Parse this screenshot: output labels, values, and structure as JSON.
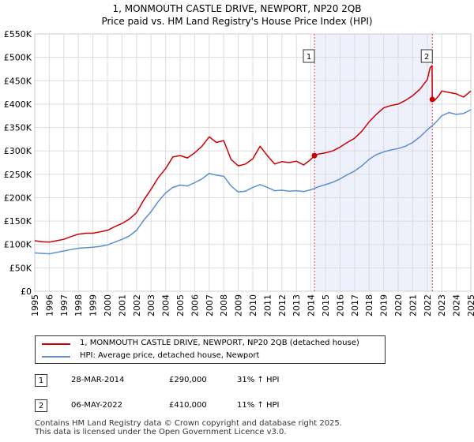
{
  "title_line1": "1, MONMOUTH CASTLE DRIVE, NEWPORT, NP20 2QB",
  "title_line2": "Price paid vs. HM Land Registry's House Price Index (HPI)",
  "colors": {
    "property": "#cc0000",
    "hpi": "#5b8fd1",
    "shade": "#eef1fb",
    "marker_line": "#dd4444"
  },
  "chart_data": {
    "type": "line",
    "xlim": [
      1995,
      2025
    ],
    "ylim": [
      0,
      550000
    ],
    "y_ticks": [
      0,
      50000,
      100000,
      150000,
      200000,
      250000,
      300000,
      350000,
      400000,
      450000,
      500000,
      550000
    ],
    "y_tick_labels": [
      "£0",
      "£50K",
      "£100K",
      "£150K",
      "£200K",
      "£250K",
      "£300K",
      "£350K",
      "£400K",
      "£450K",
      "£500K",
      "£550K"
    ],
    "x_tick_labels": [
      "1995",
      "1996",
      "1997",
      "1998",
      "1999",
      "2000",
      "2001",
      "2002",
      "2003",
      "2004",
      "2005",
      "2006",
      "2007",
      "2008",
      "2009",
      "2010",
      "2011",
      "2012",
      "2013",
      "2014",
      "2015",
      "2016",
      "2017",
      "2018",
      "2019",
      "2020",
      "2021",
      "2022",
      "2023",
      "2024",
      "2025"
    ],
    "shaded_region": [
      2014.24,
      2022.35
    ],
    "series": [
      {
        "name": "1, MONMOUTH CASTLE DRIVE, NEWPORT, NP20 2QB (detached house)",
        "points": [
          [
            1995,
            108000
          ],
          [
            1995.5,
            106000
          ],
          [
            1996,
            105000
          ],
          [
            1996.5,
            108000
          ],
          [
            1997,
            111000
          ],
          [
            1997.5,
            117000
          ],
          [
            1998,
            122000
          ],
          [
            1998.5,
            124000
          ],
          [
            1999,
            124000
          ],
          [
            1999.5,
            127000
          ],
          [
            2000,
            130000
          ],
          [
            2000.5,
            138000
          ],
          [
            2001,
            145000
          ],
          [
            2001.5,
            154000
          ],
          [
            2002,
            168000
          ],
          [
            2002.5,
            195000
          ],
          [
            2003,
            218000
          ],
          [
            2003.5,
            243000
          ],
          [
            2004,
            262000
          ],
          [
            2004.5,
            287000
          ],
          [
            2005,
            290000
          ],
          [
            2005.5,
            285000
          ],
          [
            2006,
            296000
          ],
          [
            2006.5,
            310000
          ],
          [
            2007,
            330000
          ],
          [
            2007.5,
            318000
          ],
          [
            2008,
            322000
          ],
          [
            2008.5,
            282000
          ],
          [
            2009,
            268000
          ],
          [
            2009.5,
            272000
          ],
          [
            2010,
            283000
          ],
          [
            2010.5,
            310000
          ],
          [
            2011,
            290000
          ],
          [
            2011.5,
            272000
          ],
          [
            2012,
            277000
          ],
          [
            2012.5,
            275000
          ],
          [
            2013,
            278000
          ],
          [
            2013.5,
            270000
          ],
          [
            2014,
            282000
          ],
          [
            2014.24,
            290000
          ],
          [
            2014.5,
            293000
          ],
          [
            2015,
            296000
          ],
          [
            2015.5,
            300000
          ],
          [
            2016,
            308000
          ],
          [
            2016.5,
            318000
          ],
          [
            2017,
            327000
          ],
          [
            2017.5,
            342000
          ],
          [
            2018,
            362000
          ],
          [
            2018.5,
            378000
          ],
          [
            2019,
            392000
          ],
          [
            2019.5,
            397000
          ],
          [
            2020,
            400000
          ],
          [
            2020.5,
            408000
          ],
          [
            2021,
            418000
          ],
          [
            2021.5,
            432000
          ],
          [
            2022,
            452000
          ],
          [
            2022.2,
            478000
          ],
          [
            2022.33,
            482000
          ],
          [
            2022.35,
            410000
          ],
          [
            2022.5,
            408000
          ],
          [
            2022.8,
            418000
          ],
          [
            2023,
            428000
          ],
          [
            2023.5,
            425000
          ],
          [
            2024,
            422000
          ],
          [
            2024.5,
            415000
          ],
          [
            2025,
            428000
          ]
        ]
      },
      {
        "name": "HPI: Average price, detached house, Newport",
        "points": [
          [
            1995,
            82000
          ],
          [
            1995.5,
            81000
          ],
          [
            1996,
            80000
          ],
          [
            1996.5,
            83000
          ],
          [
            1997,
            86000
          ],
          [
            1997.5,
            89000
          ],
          [
            1998,
            92000
          ],
          [
            1998.5,
            93000
          ],
          [
            1999,
            94000
          ],
          [
            1999.5,
            96000
          ],
          [
            2000,
            99000
          ],
          [
            2000.5,
            105000
          ],
          [
            2001,
            111000
          ],
          [
            2001.5,
            118000
          ],
          [
            2002,
            130000
          ],
          [
            2002.5,
            152000
          ],
          [
            2003,
            170000
          ],
          [
            2003.5,
            192000
          ],
          [
            2004,
            210000
          ],
          [
            2004.5,
            222000
          ],
          [
            2005,
            227000
          ],
          [
            2005.5,
            225000
          ],
          [
            2006,
            232000
          ],
          [
            2006.5,
            240000
          ],
          [
            2007,
            252000
          ],
          [
            2007.5,
            248000
          ],
          [
            2008,
            246000
          ],
          [
            2008.5,
            225000
          ],
          [
            2009,
            212000
          ],
          [
            2009.5,
            214000
          ],
          [
            2010,
            222000
          ],
          [
            2010.5,
            228000
          ],
          [
            2011,
            222000
          ],
          [
            2011.5,
            215000
          ],
          [
            2012,
            216000
          ],
          [
            2012.5,
            214000
          ],
          [
            2013,
            215000
          ],
          [
            2013.5,
            213000
          ],
          [
            2014,
            217000
          ],
          [
            2014.5,
            223000
          ],
          [
            2015,
            228000
          ],
          [
            2015.5,
            233000
          ],
          [
            2016,
            240000
          ],
          [
            2016.5,
            249000
          ],
          [
            2017,
            257000
          ],
          [
            2017.5,
            268000
          ],
          [
            2018,
            282000
          ],
          [
            2018.5,
            292000
          ],
          [
            2019,
            298000
          ],
          [
            2019.5,
            302000
          ],
          [
            2020,
            305000
          ],
          [
            2020.5,
            310000
          ],
          [
            2021,
            318000
          ],
          [
            2021.5,
            330000
          ],
          [
            2022,
            345000
          ],
          [
            2022.5,
            358000
          ],
          [
            2023,
            375000
          ],
          [
            2023.5,
            382000
          ],
          [
            2024,
            378000
          ],
          [
            2024.5,
            380000
          ],
          [
            2025,
            388000
          ]
        ]
      }
    ],
    "markers": [
      {
        "label": "1",
        "x": 2014.24,
        "y": 290000
      },
      {
        "label": "2",
        "x": 2022.35,
        "y": 410000
      }
    ]
  },
  "legend": {
    "property_label": "1, MONMOUTH CASTLE DRIVE, NEWPORT, NP20 2QB (detached house)",
    "hpi_label": "HPI: Average price, detached house, Newport"
  },
  "transactions": [
    {
      "id": "1",
      "date": "28-MAR-2014",
      "price": "£290,000",
      "hpi": "31% ↑ HPI"
    },
    {
      "id": "2",
      "date": "06-MAY-2022",
      "price": "£410,000",
      "hpi": "11% ↑ HPI"
    }
  ],
  "footer_line1": "Contains HM Land Registry data © Crown copyright and database right 2025.",
  "footer_line2": "This data is licensed under the Open Government Licence v3.0."
}
